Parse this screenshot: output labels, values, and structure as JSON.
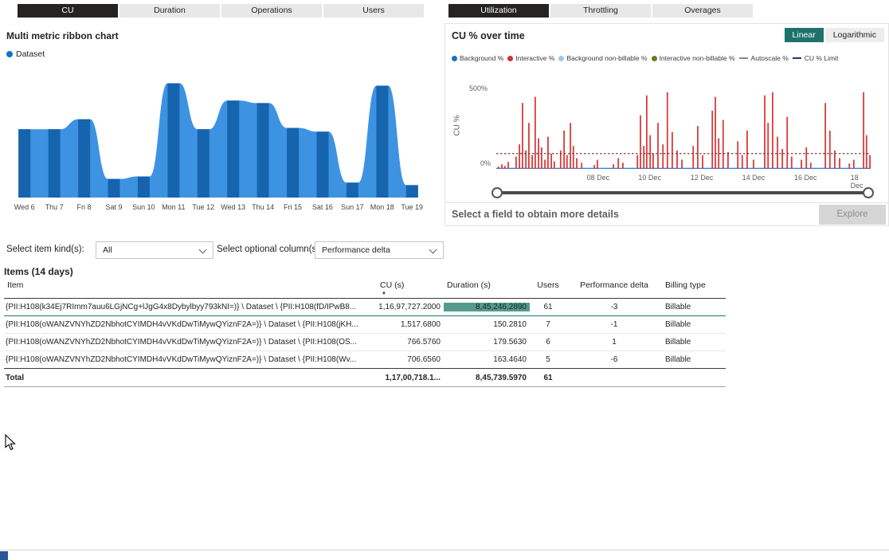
{
  "colors": {
    "accent_teal": "#1E7269",
    "selected_cell": "#559A8E",
    "tab_selected_bg": "#252423",
    "ribbon_band": "#3D93E2",
    "ribbon_stripe": "#1663AE",
    "interactive_red": "#D93B3B"
  },
  "left_panel": {
    "tabs": [
      {
        "label": "CU",
        "selected": true
      },
      {
        "label": "Duration",
        "selected": false
      },
      {
        "label": "Operations",
        "selected": false
      },
      {
        "label": "Users",
        "selected": false
      }
    ],
    "chart_title": "Multi metric ribbon chart",
    "legend": [
      {
        "label": "Dataset",
        "color": "#1373C4",
        "marker": "dot"
      }
    ]
  },
  "right_panel": {
    "tabs": [
      {
        "label": "Utilization",
        "selected": true
      },
      {
        "label": "Throttling",
        "selected": false
      },
      {
        "label": "Overages",
        "selected": false
      }
    ],
    "chart_title": "CU % over time",
    "scale_toggle": [
      {
        "label": "Linear",
        "selected": true
      },
      {
        "label": "Logarithmic",
        "selected": false
      }
    ],
    "legend": [
      {
        "label": "Background %",
        "color": "#1373C4",
        "marker": "dot"
      },
      {
        "label": "Interactive %",
        "color": "#D13438",
        "marker": "dot"
      },
      {
        "label": "Background non-billable %",
        "color": "#9CC9EE",
        "marker": "dot"
      },
      {
        "label": "Interactive non-billable %",
        "color": "#6B7A21",
        "marker": "dot"
      },
      {
        "label": "Autoscale %",
        "color": "#8A8A8A",
        "marker": "line"
      },
      {
        "label": "CU % Limit",
        "color": "#1F3864",
        "marker": "line"
      }
    ],
    "footer_text": "Select a field to obtain more details",
    "explore_label": "Explore"
  },
  "filters": {
    "item_kind_label": "Select item kind(s):",
    "item_kind_value": "All",
    "optional_column_label": "Select optional column(s):",
    "optional_column_value": "Performance delta"
  },
  "table": {
    "title": "Items (14 days)",
    "columns": [
      "Item",
      "CU (s)",
      "Duration (s)",
      "Users",
      "Performance delta",
      "Billing type"
    ],
    "sort_column": "CU (s)",
    "sort_direction": "descending",
    "rows": [
      {
        "item": "{PII:H108(k34Ej7RImm7auu6LGjNCg+lJgG4x8Dybylbyy793kNI=)} \\ Dataset \\ {PII:H108(fD/IPwB8...",
        "cu": "1,16,97,727.2000",
        "duration": "8,45,246.2890",
        "users": "61",
        "perf": "-3",
        "billing": "Billable",
        "highlight_duration": true
      },
      {
        "item": "{PII:H108(oWANZVNYhZD2NbhotCYIMDH4vVKdDwTiMywQYiznF2A=)} \\ Dataset \\ {PII:H108(jKH...",
        "cu": "1,517.6800",
        "duration": "150.2810",
        "users": "7",
        "perf": "-1",
        "billing": "Billable",
        "highlight_duration": false
      },
      {
        "item": "{PII:H108(oWANZVNYhZD2NbhotCYIMDH4vVKdDwTiMywQYiznF2A=)} \\ Dataset \\ {PII:H108(OS...",
        "cu": "766.5760",
        "duration": "179.5630",
        "users": "6",
        "perf": "1",
        "billing": "Billable",
        "highlight_duration": false
      },
      {
        "item": "{PII:H108(oWANZVNYhZD2NbhotCYIMDH4vVKdDwTiMywQYiznF2A=)} \\ Dataset \\ {PII:H108(Wv...",
        "cu": "706.6560",
        "duration": "163.4640",
        "users": "5",
        "perf": "-6",
        "billing": "Billable",
        "highlight_duration": false
      }
    ],
    "total": {
      "item": "Total",
      "cu": "1,17,00,718.1...",
      "duration": "8,45,739.5970",
      "users": "61",
      "perf": "",
      "billing": ""
    }
  },
  "chart_data": [
    {
      "id": "multi-metric-ribbon",
      "type": "area",
      "title": "Multi metric ribbon chart",
      "categories": [
        "Wed 6",
        "Thu 7",
        "Fri 8",
        "Sat 9",
        "Sun 10",
        "Mon 11",
        "Tue 12",
        "Wed 13",
        "Thu 14",
        "Fri 15",
        "Sat 16",
        "Sun 17",
        "Mon 18",
        "Tue 19"
      ],
      "series": [
        {
          "name": "Dataset",
          "values": [
            55,
            55,
            63,
            15,
            17,
            92,
            55,
            78,
            76,
            56,
            53,
            12,
            90,
            10
          ]
        }
      ],
      "ylim": [
        0,
        100
      ],
      "band_color": "#3D93E2",
      "stripe_color": "#1663AE"
    },
    {
      "id": "cu-percent-over-time",
      "type": "bar",
      "title": "CU % over time",
      "ylabel": "CU %",
      "y_ticks": [
        "500%",
        "0%"
      ],
      "ylim": [
        0,
        520
      ],
      "x_ticks": [
        "08 Dec",
        "10 Dec",
        "12 Dec",
        "14 Dec",
        "16 Dec",
        "18 Dec"
      ],
      "x_tick_pos": [
        0.272,
        0.41,
        0.549,
        0.687,
        0.826,
        0.964
      ],
      "cu_limit_percent": 100,
      "bar_color": "#D93B3B",
      "limit_color": "#803A31",
      "baseline_color": "#2383E2",
      "bars": [
        [
          0.006,
          15
        ],
        [
          0.015,
          30
        ],
        [
          0.023,
          20
        ],
        [
          0.032,
          45
        ],
        [
          0.053,
          80
        ],
        [
          0.062,
          160
        ],
        [
          0.07,
          430
        ],
        [
          0.079,
          120
        ],
        [
          0.087,
          300
        ],
        [
          0.096,
          90
        ],
        [
          0.104,
          470
        ],
        [
          0.113,
          200
        ],
        [
          0.121,
          140
        ],
        [
          0.13,
          60
        ],
        [
          0.138,
          210
        ],
        [
          0.147,
          100
        ],
        [
          0.155,
          50
        ],
        [
          0.172,
          120
        ],
        [
          0.181,
          250
        ],
        [
          0.189,
          90
        ],
        [
          0.198,
          300
        ],
        [
          0.206,
          150
        ],
        [
          0.215,
          70
        ],
        [
          0.228,
          40
        ],
        [
          0.262,
          25
        ],
        [
          0.27,
          60
        ],
        [
          0.313,
          30
        ],
        [
          0.326,
          70
        ],
        [
          0.338,
          40
        ],
        [
          0.377,
          90
        ],
        [
          0.385,
          350
        ],
        [
          0.394,
          150
        ],
        [
          0.402,
          480
        ],
        [
          0.411,
          220
        ],
        [
          0.419,
          100
        ],
        [
          0.432,
          300
        ],
        [
          0.445,
          160
        ],
        [
          0.457,
          500
        ],
        [
          0.47,
          240
        ],
        [
          0.483,
          120
        ],
        [
          0.496,
          60
        ],
        [
          0.526,
          150
        ],
        [
          0.538,
          280
        ],
        [
          0.551,
          90
        ],
        [
          0.577,
          380
        ],
        [
          0.585,
          470
        ],
        [
          0.594,
          200
        ],
        [
          0.606,
          320
        ],
        [
          0.619,
          110
        ],
        [
          0.645,
          180
        ],
        [
          0.657,
          90
        ],
        [
          0.67,
          250
        ],
        [
          0.687,
          60
        ],
        [
          0.717,
          480
        ],
        [
          0.726,
          300
        ],
        [
          0.738,
          500
        ],
        [
          0.751,
          210
        ],
        [
          0.764,
          130
        ],
        [
          0.777,
          340
        ],
        [
          0.789,
          80
        ],
        [
          0.815,
          60
        ],
        [
          0.828,
          140
        ],
        [
          0.84,
          40
        ],
        [
          0.879,
          430
        ],
        [
          0.891,
          250
        ],
        [
          0.904,
          120
        ],
        [
          0.917,
          70
        ],
        [
          0.943,
          35
        ],
        [
          0.955,
          60
        ],
        [
          0.981,
          500
        ],
        [
          0.989,
          220
        ],
        [
          0.998,
          90
        ]
      ]
    }
  ]
}
